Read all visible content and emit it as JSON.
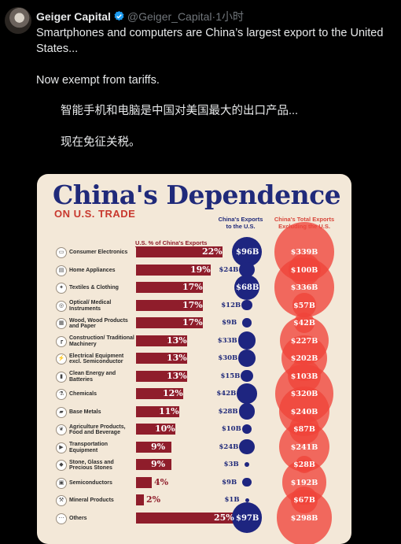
{
  "tweet": {
    "author_name": "Geiger Capital",
    "handle": "@Geiger_Capital",
    "separator": "·",
    "time": "1小时",
    "text_en_1": "Smartphones and computers are China’s largest export to the United States...",
    "text_en_2": "Now exempt from tariffs.",
    "text_cn_1": "智能手机和电脑是中国对美国最大的出口产品...",
    "text_cn_2": "现在免征关税。"
  },
  "colors": {
    "verified": "#1d9bf0",
    "bar": "#8f1d2b",
    "us_circle": "#1e2580",
    "total_circle": "#f0443a",
    "card_bg": "#f3e8d8"
  },
  "infographic": {
    "title": "China's Dependence",
    "subtitle": "ON U.S. TRADE",
    "col_bar": "U.S. % of China's Exports",
    "col_us_1": "China's Exports",
    "col_us_2": "to the U.S.",
    "col_total_1": "China's Total Exports",
    "col_total_2": "Excluding the U.S."
  },
  "chart_data": {
    "type": "bar",
    "title": "China's Dependence",
    "subtitle": "ON U.S. TRADE",
    "units": "B",
    "series": [
      {
        "name": "U.S. % of China's Exports",
        "unit": "%"
      },
      {
        "name": "China's Exports to the U.S.",
        "unit": "$B"
      },
      {
        "name": "China's Total Exports Excluding the U.S.",
        "unit": "$B"
      }
    ],
    "rows": [
      {
        "category": "Consumer Electronics",
        "icon": "laptop-icon",
        "pct": 22,
        "pct_label": "22%",
        "us": 96,
        "us_label": "$96B",
        "total": 339,
        "total_label": "$339B"
      },
      {
        "category": "Home Appliances",
        "icon": "appliance-icon",
        "pct": 19,
        "pct_label": "19%",
        "us": 24,
        "us_label": "$24B",
        "total": 100,
        "total_label": "$100B"
      },
      {
        "category": "Textiles & Clothing",
        "icon": "shirt-icon",
        "pct": 17,
        "pct_label": "17%",
        "us": 68,
        "us_label": "$68B",
        "total": 336,
        "total_label": "$336B"
      },
      {
        "category": "Optical/ Medical Instruments",
        "icon": "microscope-icon",
        "pct": 17,
        "pct_label": "17%",
        "us": 12,
        "us_label": "$12B",
        "total": 57,
        "total_label": "$57B"
      },
      {
        "category": "Wood, Wood Products and Paper",
        "icon": "log-icon",
        "pct": 17,
        "pct_label": "17%",
        "us": 9,
        "us_label": "$9B",
        "total": 42,
        "total_label": "$42B"
      },
      {
        "category": "Construction/ Traditional Machinery",
        "icon": "crane-icon",
        "pct": 13,
        "pct_label": "13%",
        "us": 33,
        "us_label": "$33B",
        "total": 227,
        "total_label": "$227B"
      },
      {
        "category": "Electrical Equipment excl. Semiconductor",
        "icon": "plug-icon",
        "pct": 13,
        "pct_label": "13%",
        "us": 30,
        "us_label": "$30B",
        "total": 202,
        "total_label": "$202B"
      },
      {
        "category": "Clean Energy and Batteries",
        "icon": "battery-icon",
        "pct": 13,
        "pct_label": "13%",
        "us": 15,
        "us_label": "$15B",
        "total": 103,
        "total_label": "$103B"
      },
      {
        "category": "Chemicals",
        "icon": "flask-icon",
        "pct": 12,
        "pct_label": "12%",
        "us": 42,
        "us_label": "$42B",
        "total": 320,
        "total_label": "$320B"
      },
      {
        "category": "Base Metals",
        "icon": "ingot-icon",
        "pct": 11,
        "pct_label": "11%",
        "us": 28,
        "us_label": "$28B",
        "total": 240,
        "total_label": "$240B"
      },
      {
        "category": "Agriculture Products, Food and Beverage",
        "icon": "wheat-icon",
        "pct": 10,
        "pct_label": "10%",
        "us": 10,
        "us_label": "$10B",
        "total": 87,
        "total_label": "$87B"
      },
      {
        "category": "Transportation Equipment",
        "icon": "car-icon",
        "pct": 9,
        "pct_label": "9%",
        "us": 24,
        "us_label": "$24B",
        "total": 241,
        "total_label": "$241B"
      },
      {
        "category": "Stone, Glass and Precious Stones",
        "icon": "gem-icon",
        "pct": 9,
        "pct_label": "9%",
        "us": 3,
        "us_label": "$3B",
        "total": 28,
        "total_label": "$28B"
      },
      {
        "category": "Semiconductors",
        "icon": "chip-icon",
        "pct": 4,
        "pct_label": "4%",
        "us": 9,
        "us_label": "$9B",
        "total": 192,
        "total_label": "$192B"
      },
      {
        "category": "Mineral Products",
        "icon": "pickaxe-icon",
        "pct": 2,
        "pct_label": "2%",
        "us": 1,
        "us_label": "$1B",
        "total": 67,
        "total_label": "$67B"
      },
      {
        "category": "Others",
        "icon": "dots-icon",
        "pct": 25,
        "pct_label": "25%",
        "us": 97,
        "us_label": "$97B",
        "total": 298,
        "total_label": "$298B"
      }
    ]
  }
}
